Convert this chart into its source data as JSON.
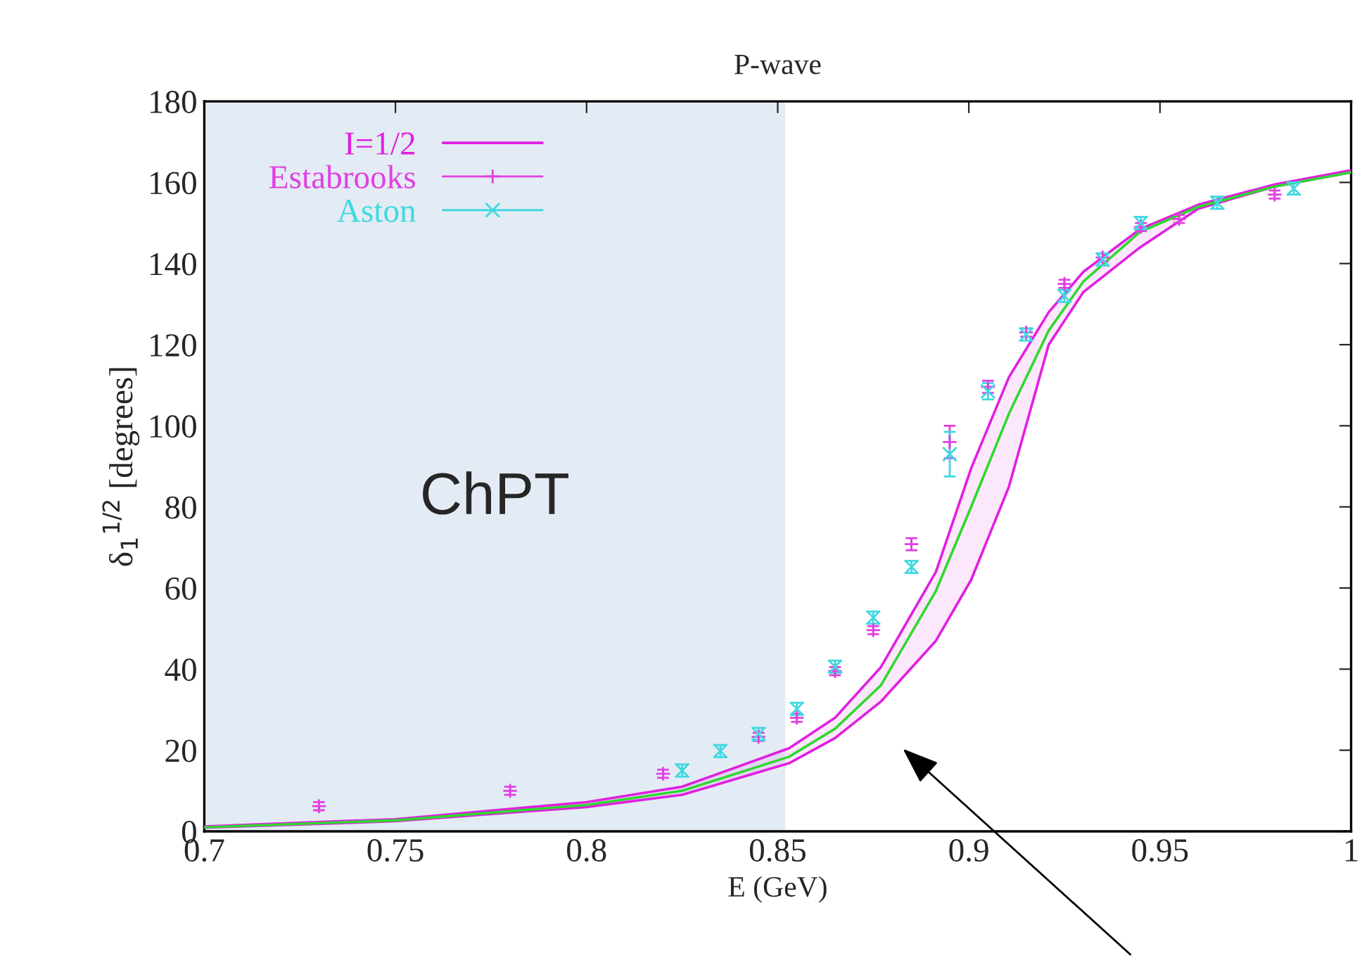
{
  "chart_data": {
    "type": "line",
    "title": "P-wave",
    "xlabel": "E (GeV)",
    "ylabel": "δ$_{1}$$^{1/2}$ [degrees]",
    "xlim": [
      0.7,
      1.0
    ],
    "xticks": [
      0.7,
      0.75,
      0.8,
      0.85,
      0.9,
      0.95,
      1
    ],
    "ylim": [
      0,
      180
    ],
    "yticks": [
      0,
      20,
      40,
      60,
      80,
      100,
      120,
      140,
      160,
      180
    ],
    "grid": false,
    "legend": "top left",
    "line_style": "solid",
    "bands": [
      {
        "axis": "x",
        "from": 0.7,
        "to": 0.852,
        "label": "ChPT",
        "color": "#e3ebf4"
      }
    ],
    "series": [
      {
        "name": "I=1/2",
        "type": "line",
        "color": "#e020e0",
        "x": [
          0.7,
          0.75,
          0.8,
          0.825,
          0.853,
          0.865,
          0.877,
          0.8914,
          0.9006,
          0.9105,
          0.9209,
          0.93,
          0.9448,
          0.96,
          0.98,
          1.0
        ],
        "values": [
          null,
          null,
          null,
          null,
          null,
          null,
          null,
          null,
          null,
          null,
          null,
          null,
          null,
          null,
          null,
          null
        ],
        "upper": [
          1.2,
          3,
          7.2,
          11,
          20.5,
          28,
          40.5,
          64,
          89.5,
          112,
          128,
          138,
          148.5,
          154.5,
          159.5,
          163
        ],
        "lower": [
          0.9,
          2.5,
          6,
          9,
          16.8,
          23,
          32,
          47,
          62,
          85,
          120,
          133,
          144,
          153.5,
          159,
          162.5
        ]
      },
      {
        "type": "line",
        "color": "#30d830",
        "x": [
          0.7,
          0.75,
          0.8,
          0.825,
          0.853,
          0.865,
          0.877,
          0.8914,
          0.9006,
          0.9105,
          0.9209,
          0.93,
          0.9448,
          0.96,
          0.98,
          1.0
        ],
        "values": [
          1.0,
          2.7,
          6.5,
          10,
          18.4,
          25.3,
          36,
          59.3,
          80,
          103,
          123.5,
          135.6,
          147.8,
          154,
          159,
          162.5
        ]
      },
      {
        "name": "Estabrooks",
        "type": "scatter",
        "marker": "cross",
        "color": "#e040e0",
        "x": [
          0.73,
          0.78,
          0.82,
          0.845,
          0.855,
          0.865,
          0.875,
          0.885,
          0.895,
          0.905,
          0.915,
          0.925,
          0.935,
          0.945,
          0.955,
          0.98
        ],
        "values": [
          6.2,
          10,
          14.2,
          23.3,
          28,
          39.5,
          49.6,
          70.8,
          96,
          109.6,
          123,
          135,
          141.5,
          149,
          151,
          157
        ],
        "errors": [
          1,
          1,
          1,
          1,
          1,
          1,
          1,
          1.5,
          4,
          1.5,
          1,
          1,
          1,
          1,
          1,
          1
        ]
      },
      {
        "name": "Aston",
        "type": "scatter",
        "marker": "x",
        "color": "#40d8e0",
        "x": [
          0.825,
          0.835,
          0.845,
          0.855,
          0.865,
          0.875,
          0.885,
          0.895,
          0.905,
          0.915,
          0.925,
          0.935,
          0.945,
          0.965,
          0.985
        ],
        "values": [
          15,
          19.8,
          24,
          30.2,
          40.6,
          52.7,
          65.2,
          93,
          108.5,
          122.5,
          132,
          141,
          150,
          155,
          158.5
        ],
        "errors": [
          1.5,
          1.5,
          1.5,
          1.5,
          1.5,
          1.5,
          1.5,
          5.5,
          2,
          1.5,
          1.5,
          1.5,
          1.5,
          1.5,
          1.5
        ]
      }
    ]
  }
}
